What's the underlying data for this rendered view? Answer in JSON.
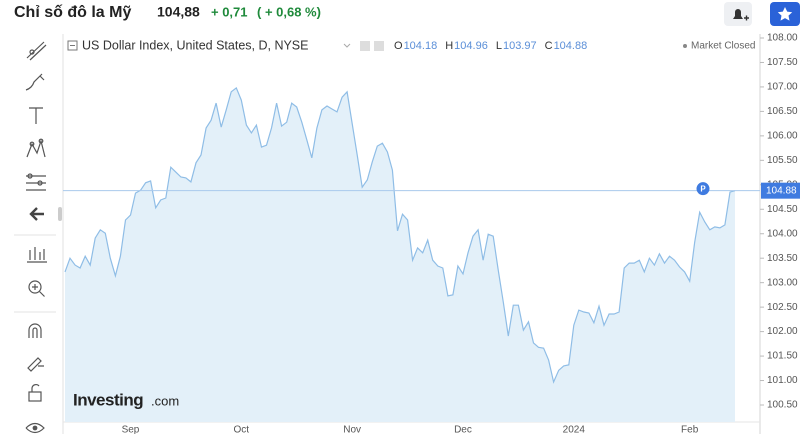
{
  "header": {
    "title": "Chỉ số đô la Mỹ",
    "price": "104,88",
    "change": "+ 0,71",
    "change_percent": "( + 0,68 %)"
  },
  "chart_data": {
    "type": "area",
    "title": "US Dollar Index, United States, D, NYSE",
    "status": "Market Closed",
    "ohlc": [
      {
        "label": "O",
        "value": 104.18
      },
      {
        "label": "H",
        "value": 104.96
      },
      {
        "label": "L",
        "value": 103.97
      },
      {
        "label": "C",
        "value": 104.88
      }
    ],
    "last_value": 104.88,
    "marker": "P",
    "logo": {
      "brand": "Investing",
      "suffix": ".com"
    },
    "color": "#8fbde6",
    "fill": "#e3f0f9",
    "last_line_color": "#a9c9ec",
    "grid": false,
    "categories": [
      null,
      null,
      null,
      null,
      null,
      null,
      null,
      null,
      null,
      null,
      null,
      null,
      null,
      "Sep",
      null,
      null,
      null,
      null,
      null,
      null,
      null,
      null,
      null,
      null,
      null,
      null,
      null,
      null,
      null,
      null,
      null,
      null,
      null,
      null,
      null,
      "Oct",
      null,
      null,
      null,
      null,
      null,
      null,
      null,
      null,
      null,
      null,
      null,
      null,
      null,
      null,
      null,
      null,
      null,
      null,
      null,
      null,
      null,
      "Nov",
      null,
      null,
      null,
      null,
      null,
      null,
      null,
      null,
      null,
      null,
      null,
      null,
      null,
      null,
      null,
      null,
      null,
      null,
      null,
      null,
      null,
      "Dec",
      null,
      null,
      null,
      null,
      null,
      null,
      null,
      null,
      null,
      null,
      null,
      null,
      null,
      null,
      null,
      null,
      null,
      null,
      null,
      null,
      null,
      "2024",
      null,
      null,
      null,
      null,
      null,
      null,
      null,
      null,
      null,
      null,
      null,
      null,
      null,
      null,
      null,
      null,
      null,
      null,
      null,
      null,
      null,
      null,
      "Feb",
      null,
      null,
      null,
      null,
      null,
      null,
      null,
      null,
      null
    ],
    "values": [
      103.22,
      103.5,
      103.36,
      103.3,
      103.54,
      103.36,
      103.91,
      104.08,
      104.01,
      103.5,
      103.14,
      103.54,
      104.28,
      104.38,
      104.83,
      104.89,
      105.04,
      105.08,
      104.53,
      104.69,
      104.73,
      105.36,
      105.26,
      105.16,
      105.14,
      105.06,
      105.45,
      105.61,
      106.16,
      106.32,
      106.67,
      106.18,
      106.53,
      106.9,
      106.98,
      106.73,
      106.22,
      106.06,
      106.22,
      105.77,
      105.81,
      106.16,
      106.67,
      106.2,
      106.28,
      106.67,
      106.59,
      106.28,
      105.92,
      105.55,
      106.16,
      106.53,
      106.61,
      106.55,
      106.49,
      106.79,
      106.9,
      106.26,
      105.61,
      104.95,
      105.1,
      105.47,
      105.79,
      105.85,
      105.67,
      105.3,
      104.06,
      104.4,
      104.28,
      103.46,
      103.71,
      103.61,
      103.87,
      103.46,
      103.34,
      103.3,
      102.73,
      102.75,
      103.34,
      103.18,
      103.61,
      103.95,
      104.08,
      103.46,
      103.99,
      103.95,
      103.26,
      102.6,
      101.91,
      102.54,
      102.54,
      102.03,
      102.2,
      101.77,
      101.68,
      101.66,
      101.42,
      100.97,
      101.21,
      101.3,
      101.32,
      102.13,
      102.44,
      102.4,
      102.38,
      102.18,
      102.52,
      102.13,
      102.36,
      102.36,
      102.4,
      103.3,
      103.4,
      103.4,
      103.46,
      103.22,
      103.5,
      103.36,
      103.59,
      103.4,
      103.54,
      103.46,
      103.32,
      103.22,
      103.03,
      103.83,
      104.44,
      104.24,
      104.08,
      104.14,
      104.12,
      104.18,
      104.85,
      104.88
    ],
    "ylim": [
      100.5,
      108
    ],
    "yticks": [
      {
        "value": 100.5,
        "label": "100.50"
      },
      {
        "value": 101,
        "label": "101.00"
      },
      {
        "value": 101.5,
        "label": "101.50"
      },
      {
        "value": 102,
        "label": "102.00"
      },
      {
        "value": 102.5,
        "label": "102.50"
      },
      {
        "value": 103,
        "label": "103.00"
      },
      {
        "value": 103.5,
        "label": "103.50"
      },
      {
        "value": 104,
        "label": "104.00"
      },
      {
        "value": 104.5,
        "label": "104.50"
      },
      {
        "value": 105,
        "label": "105.00"
      },
      {
        "value": 105.5,
        "label": "105.50"
      },
      {
        "value": 106,
        "label": "106.00"
      },
      {
        "value": 106.5,
        "label": "106.50"
      },
      {
        "value": 107,
        "label": "107.00"
      },
      {
        "value": 107.5,
        "label": "107.50"
      },
      {
        "value": 108,
        "label": "108.00"
      }
    ]
  }
}
